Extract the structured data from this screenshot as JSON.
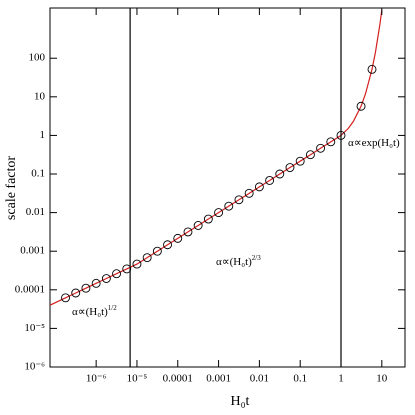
{
  "chart_data": {
    "type": "line",
    "x_label": "H₀t",
    "y_label": "scale factor",
    "log_x": true,
    "log_y": true,
    "xlim": [
      7.4e-08,
      37
    ],
    "ylim": [
      1e-06,
      2000
    ],
    "xticks": [
      {
        "value": 1e-06,
        "label": "10⁻⁶"
      },
      {
        "value": 1e-05,
        "label": "10⁻⁵"
      },
      0.0001,
      0.001,
      0.01,
      0.1,
      1,
      10
    ],
    "yticks": [
      {
        "value": 1e-06,
        "label": "10⁻⁶"
      },
      {
        "value": 1e-05,
        "label": "10⁻⁵"
      },
      0.0001,
      0.001,
      0.01,
      0.1,
      1,
      10,
      100
    ],
    "vlines": [
      6.8e-06,
      1
    ],
    "series": [
      {
        "style": "line",
        "color": "#d42020",
        "x": [
          7.4e-08,
          1.78e-07,
          3.16e-07,
          5.62e-07,
          1e-06,
          1.78e-06,
          3.16e-06,
          5.62e-06,
          1e-05,
          1.78e-05,
          3.16e-05,
          5.62e-05,
          0.0001,
          0.000178,
          0.000316,
          0.000562,
          0.001,
          0.00178,
          0.00316,
          0.00562,
          0.01,
          0.0178,
          0.0316,
          0.0562,
          0.1,
          0.178,
          0.316,
          0.562,
          1,
          1.5,
          2,
          3.1,
          4,
          5.75,
          7,
          9,
          10
        ],
        "values": [
          4e-05,
          6.2e-05,
          8.26e-05,
          0.00011,
          0.000147,
          0.000196,
          0.000261,
          0.000348,
          0.000464,
          0.000681,
          0.001,
          0.00147,
          0.00215,
          0.00316,
          0.00464,
          0.00681,
          0.01,
          0.0147,
          0.0215,
          0.0316,
          0.0464,
          0.0681,
          0.1,
          0.147,
          0.215,
          0.316,
          0.464,
          0.681,
          1,
          1.51,
          2.29,
          5.7,
          12.1,
          51.5,
          145,
          765,
          1755
        ]
      },
      {
        "style": "marker",
        "color": "#000000",
        "x": [
          1.78e-07,
          3.16e-07,
          5.62e-07,
          1e-06,
          1.78e-06,
          3.16e-06,
          5.62e-06,
          1e-05,
          1.78e-05,
          3.16e-05,
          5.62e-05,
          0.0001,
          0.000178,
          0.000316,
          0.000562,
          0.001,
          0.00178,
          0.00316,
          0.00562,
          0.01,
          0.0178,
          0.0316,
          0.0562,
          0.1,
          0.178,
          0.316,
          0.562,
          1,
          3.1,
          5.75
        ],
        "values": [
          6.2e-05,
          8.26e-05,
          0.00011,
          0.000147,
          0.000196,
          0.000261,
          0.000348,
          0.000464,
          0.000681,
          0.001,
          0.00147,
          0.00215,
          0.00316,
          0.00464,
          0.00681,
          0.01,
          0.0147,
          0.0215,
          0.0316,
          0.0464,
          0.0681,
          0.1,
          0.147,
          0.215,
          0.316,
          0.464,
          0.681,
          1,
          5.7,
          51.5
        ]
      }
    ],
    "annotations": [
      {
        "text": "α∝(H₀t)",
        "sup": "1/2"
      },
      {
        "text": "α∝(H₀t)",
        "sup": "2/3"
      },
      {
        "text": "α∝exp(H₀t)"
      }
    ]
  }
}
